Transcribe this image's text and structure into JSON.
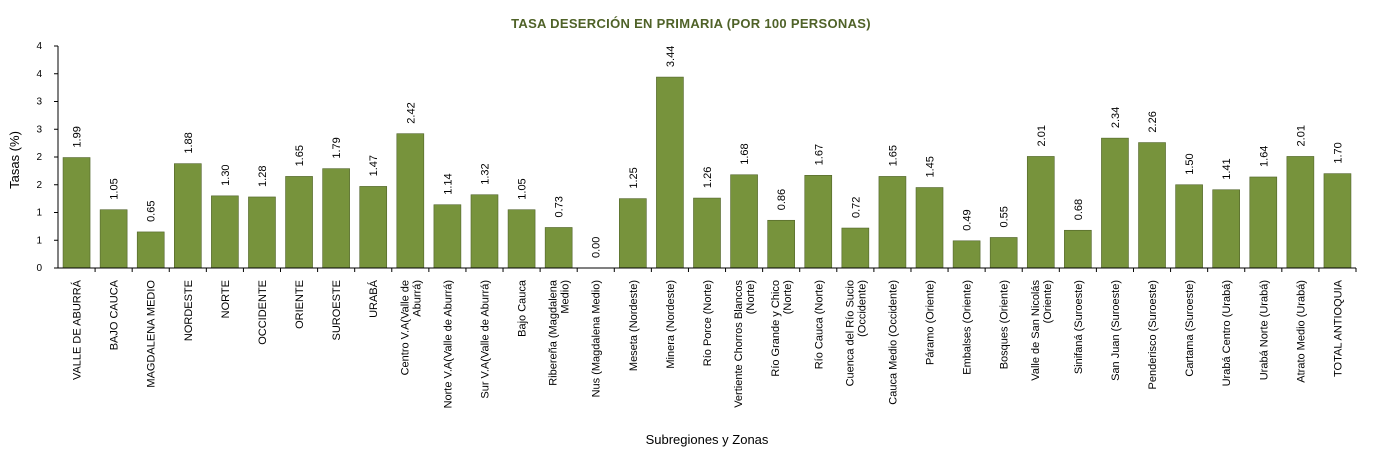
{
  "chart_data": {
    "type": "bar",
    "title": "TASA DESERCIÓN EN PRIMARIA (POR 100 PERSONAS)",
    "xlabel": "Subregiones y Zonas",
    "ylabel": "Tasas (%)",
    "ylim": [
      0,
      4
    ],
    "ytick_labels": [
      "0",
      "1",
      "1",
      "2",
      "2",
      "3",
      "3",
      "4",
      "4"
    ],
    "grid": false,
    "bar_color": "#77933c",
    "categories": [
      [
        "VALLE DE ABURRÁ"
      ],
      [
        "BAJO CAUCA"
      ],
      [
        "MAGDALENA MEDIO"
      ],
      [
        "NORDESTE"
      ],
      [
        "NORTE"
      ],
      [
        "OCCIDENTE"
      ],
      [
        "ORIENTE"
      ],
      [
        "SUROESTE"
      ],
      [
        "URABÁ"
      ],
      [
        "Centro V.A(Valle de",
        "Aburrá)"
      ],
      [
        "Norte V.A(Valle de Aburrá)"
      ],
      [
        "Sur V.A(Valle de Aburrá)"
      ],
      [
        "Bajo Cauca"
      ],
      [
        "Ribereña (Magdalena",
        "Medio)"
      ],
      [
        "Nus (Magdalena Medio)"
      ],
      [
        "Meseta (Nordeste)"
      ],
      [
        "Minera (Nordeste)"
      ],
      [
        "Río Porce (Norte)"
      ],
      [
        "Vertiente Chorros Blancos",
        "(Norte)"
      ],
      [
        "Río Grande y Chico",
        "(Norte)"
      ],
      [
        "Río Cauca (Norte)"
      ],
      [
        "Cuenca del Río Sucio",
        "(Occidente)"
      ],
      [
        "Cauca Medio (Occidente)"
      ],
      [
        "Páramo (Oriente)"
      ],
      [
        "Embalses (Oriente)"
      ],
      [
        "Bosques (Oriente)"
      ],
      [
        "Valle de San Nicolás",
        "(Oriente)"
      ],
      [
        "Sinifaná (Suroeste)"
      ],
      [
        "San Juan (Suroeste)"
      ],
      [
        "Penderisco (Suroeste)"
      ],
      [
        "Cartama (Suroeste)"
      ],
      [
        "Urabá Centro (Urabá)"
      ],
      [
        "Urabá Norte (Urabá)"
      ],
      [
        "Atrato Medio (Urabá)"
      ],
      [
        "TOTAL ANTIOQUIA"
      ]
    ],
    "values": [
      1.99,
      1.05,
      0.65,
      1.88,
      1.3,
      1.28,
      1.65,
      1.79,
      1.47,
      2.42,
      1.14,
      1.32,
      1.05,
      0.73,
      0.0,
      1.25,
      3.44,
      1.26,
      1.68,
      0.86,
      1.67,
      0.72,
      1.65,
      1.45,
      0.49,
      0.55,
      2.01,
      0.68,
      2.34,
      2.26,
      1.5,
      1.41,
      1.64,
      2.01,
      1.7
    ],
    "value_labels": [
      "1.99",
      "1.05",
      "0.65",
      "1.88",
      "1.30",
      "1.28",
      "1.65",
      "1.79",
      "1.47",
      "2.42",
      "1.14",
      "1.32",
      "1.05",
      "0.73",
      "0.00",
      "1.25",
      "3.44",
      "1.26",
      "1.68",
      "0.86",
      "1.67",
      "0.72",
      "1.65",
      "1.45",
      "0.49",
      "0.55",
      "2.01",
      "0.68",
      "2.34",
      "2.26",
      "1.50",
      "1.41",
      "1.64",
      "2.01",
      "1.70"
    ]
  }
}
